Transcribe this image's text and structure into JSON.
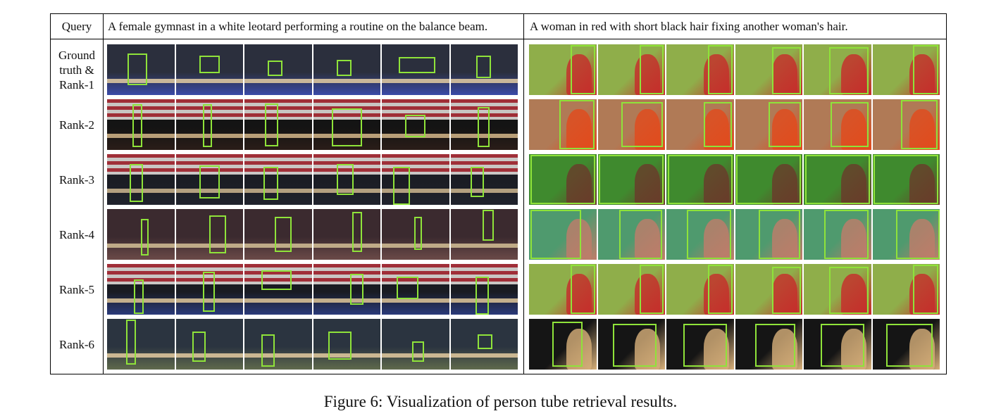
{
  "table": {
    "query_header": "Query",
    "queries": [
      "A female gymnast in a white leotard performing a routine on the balance beam.",
      "A woman in red with short black hair fixing another woman's hair."
    ],
    "row_labels": [
      [
        "Ground",
        "truth &",
        "Rank-1"
      ],
      [
        "Rank-2"
      ],
      [
        "Rank-3"
      ],
      [
        "Rank-4"
      ],
      [
        "Rank-5"
      ],
      [
        "Rank-6"
      ]
    ],
    "frames_per_query": 6
  },
  "caption": "Figure 6: Visualization of person tube retrieval results.",
  "colors": {
    "bounding_box": "#8fe33a",
    "gymnastics_rows": [
      {
        "bg": "#2b2f3d",
        "floor": "#3a4aa8",
        "beam": "#c9b79a"
      },
      {
        "bg": "#141414",
        "floor": "#2a1d18",
        "beam": "#b99f78",
        "flag": "#b8323c"
      },
      {
        "bg": "#1b1d24",
        "floor": "#20232d",
        "beam": "#b3a080",
        "flag": "#b8323c"
      },
      {
        "bg": "#3b2a2f",
        "floor": "#6b4a48",
        "beam": "#c0ab88"
      },
      {
        "bg": "#191b22",
        "floor": "#2a3a7a",
        "beam": "#c2ae8c",
        "flag": "#b8323c"
      },
      {
        "bg": "#2b3440",
        "floor": "#5f6a4c",
        "beam": "#cbb892"
      }
    ],
    "hair_rows": [
      {
        "bg": "#8fae4a",
        "accent": "#c72a2a"
      },
      {
        "bg": "#b07a56",
        "accent": "#e24a1c"
      },
      {
        "bg": "#3f8a2e",
        "accent": "#6a3a2a"
      },
      {
        "bg": "#4f9a6e",
        "accent": "#c07c6a"
      },
      {
        "bg": "#8fae4a",
        "accent": "#c72a2a"
      },
      {
        "bg": "#151515",
        "accent": "#d8b07a"
      }
    ]
  }
}
